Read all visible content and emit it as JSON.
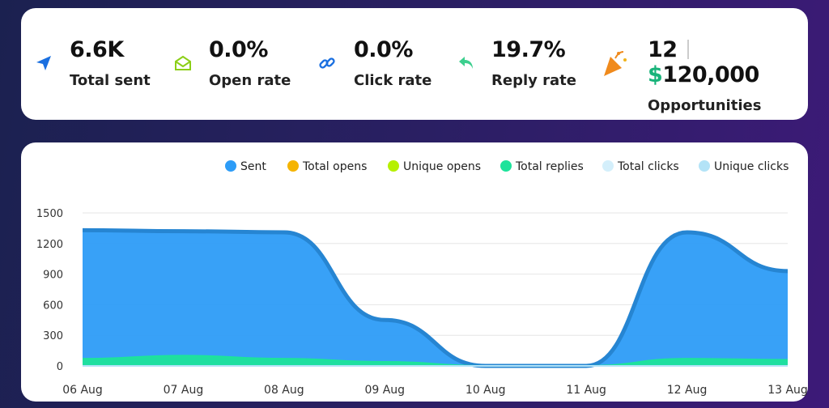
{
  "stats": [
    {
      "value": "6.6K",
      "label": "Total sent"
    },
    {
      "value": "0.0%",
      "label": "Open rate"
    },
    {
      "value": "0.0%",
      "label": "Click rate"
    },
    {
      "value": "19.7%",
      "label": "Reply rate"
    },
    {
      "value": "12",
      "amount": "$120,000",
      "label": "Opportunities"
    }
  ],
  "chart_data": {
    "type": "area",
    "categories": [
      "06 Aug",
      "07 Aug",
      "08 Aug",
      "09 Aug",
      "10 Aug",
      "11 Aug",
      "12 Aug",
      "13 Aug"
    ],
    "series": [
      {
        "name": "Sent",
        "color": "#2d9cf7",
        "values": [
          1330,
          1320,
          1310,
          450,
          0,
          0,
          1310,
          930
        ]
      },
      {
        "name": "Total opens",
        "color": "#f5b400",
        "values": [
          0,
          0,
          0,
          0,
          0,
          0,
          0,
          0
        ]
      },
      {
        "name": "Unique opens",
        "color": "#b6f000",
        "values": [
          0,
          0,
          0,
          0,
          0,
          0,
          0,
          0
        ]
      },
      {
        "name": "Total replies",
        "color": "#1de39b",
        "values": [
          70,
          100,
          70,
          40,
          0,
          0,
          70,
          60
        ]
      },
      {
        "name": "Total clicks",
        "color": "#d4effb",
        "values": [
          0,
          0,
          0,
          0,
          0,
          0,
          0,
          0
        ]
      },
      {
        "name": "Unique clicks",
        "color": "#b3e3f7",
        "values": [
          0,
          0,
          0,
          0,
          0,
          0,
          0,
          0
        ]
      }
    ],
    "ylim": [
      0,
      1500
    ],
    "yticks": [
      0,
      300,
      600,
      900,
      1200,
      1500
    ],
    "grid": true
  }
}
